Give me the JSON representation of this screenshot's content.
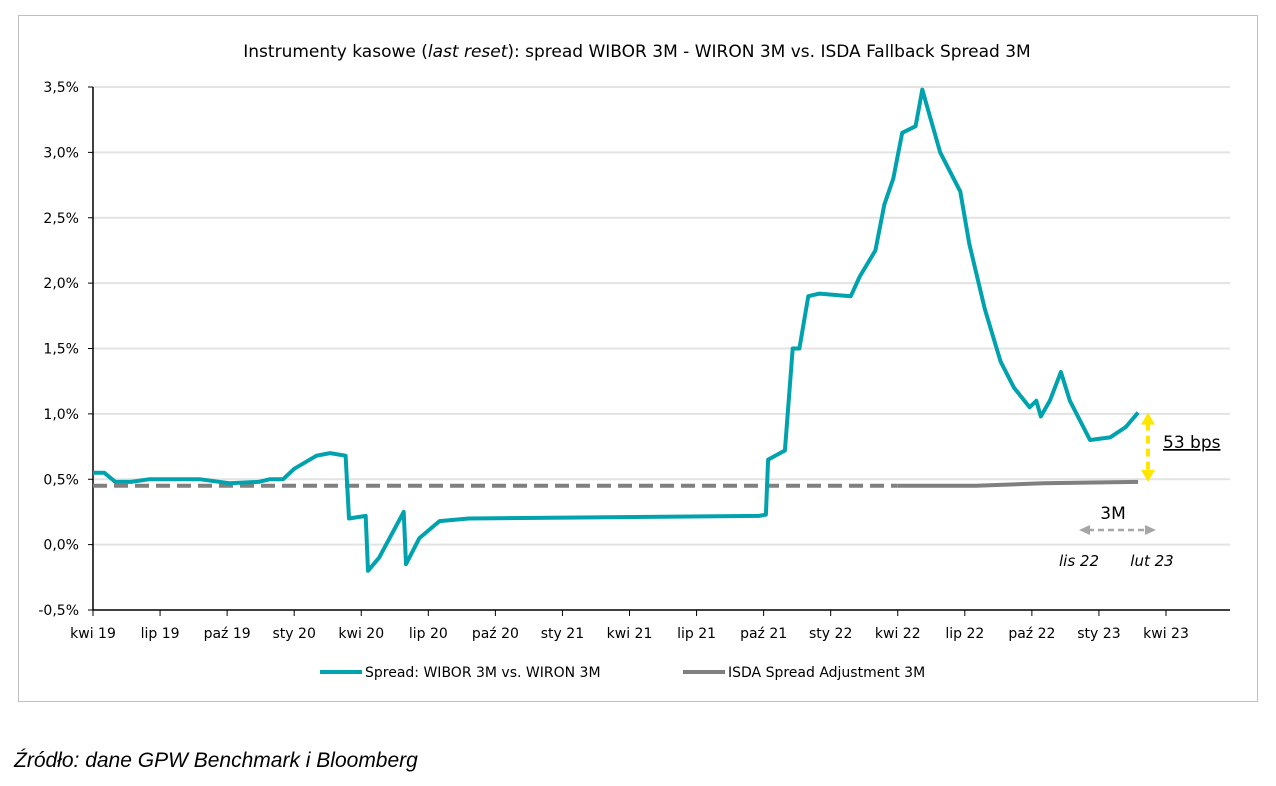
{
  "chart_data": {
    "type": "line",
    "title_parts": [
      "Instrumenty kasowe (",
      "last reset",
      "): spread WIBOR 3M - WIRON 3M vs. ISDA Fallback Spread 3M"
    ],
    "x_unit": "months since kwi 19",
    "x_ticks": [
      "kwi 19",
      "lip 19",
      "paź 19",
      "sty 20",
      "kwi 20",
      "lip 20",
      "paź 20",
      "sty 21",
      "kwi 21",
      "lip 21",
      "paź 21",
      "sty 22",
      "kwi 22",
      "lip 22",
      "paź 22",
      "sty 23",
      "kwi 23"
    ],
    "y_ticks": [
      "-0,5%",
      "0,0%",
      "0,5%",
      "1,0%",
      "1,5%",
      "2,0%",
      "2,5%",
      "3,0%",
      "3,5%"
    ],
    "ylim": [
      -0.5,
      3.5
    ],
    "xlim": [
      0,
      48
    ],
    "grid": true,
    "legend_position": "bottom",
    "series": [
      {
        "name": "Spread: WIBOR 3M vs. WIRON 3M",
        "color": "#00A3AD",
        "points": [
          [
            0,
            0.55
          ],
          [
            0.5,
            0.55
          ],
          [
            1,
            0.48
          ],
          [
            1.7,
            0.48
          ],
          [
            2.5,
            0.5
          ],
          [
            4.8,
            0.5
          ],
          [
            6.1,
            0.47
          ],
          [
            7.4,
            0.48
          ],
          [
            7.9,
            0.5
          ],
          [
            8.5,
            0.5
          ],
          [
            9,
            0.58
          ],
          [
            10,
            0.68
          ],
          [
            10.6,
            0.7
          ],
          [
            11.3,
            0.68
          ],
          [
            11.45,
            0.2
          ],
          [
            12.2,
            0.22
          ],
          [
            12.3,
            -0.2
          ],
          [
            12.8,
            -0.1
          ],
          [
            13.9,
            0.25
          ],
          [
            14,
            -0.15
          ],
          [
            14.6,
            0.05
          ],
          [
            15.5,
            0.18
          ],
          [
            16.8,
            0.2
          ],
          [
            29.8,
            0.22
          ],
          [
            30.1,
            0.23
          ],
          [
            30.2,
            0.65
          ],
          [
            30.95,
            0.72
          ],
          [
            31.3,
            1.5
          ],
          [
            31.6,
            1.5
          ],
          [
            32,
            1.9
          ],
          [
            32.5,
            1.92
          ],
          [
            33.9,
            1.9
          ],
          [
            34.3,
            2.05
          ],
          [
            35,
            2.25
          ],
          [
            35.4,
            2.6
          ],
          [
            35.8,
            2.8
          ],
          [
            36.2,
            3.15
          ],
          [
            36.8,
            3.2
          ],
          [
            37.1,
            3.48
          ],
          [
            37.4,
            3.3
          ],
          [
            37.9,
            3.0
          ],
          [
            38.8,
            2.7
          ],
          [
            39.2,
            2.3
          ],
          [
            39.9,
            1.8
          ],
          [
            40.6,
            1.4
          ],
          [
            41.2,
            1.2
          ],
          [
            41.9,
            1.05
          ],
          [
            42.2,
            1.1
          ],
          [
            42.4,
            0.98
          ],
          [
            42.8,
            1.1
          ],
          [
            43.3,
            1.32
          ],
          [
            43.7,
            1.1
          ],
          [
            44.6,
            0.8
          ],
          [
            45.5,
            0.82
          ],
          [
            46.2,
            0.9
          ],
          [
            46.75,
            1.01
          ]
        ]
      },
      {
        "name": "ISDA Spread Adjustment 3M",
        "color": "#808080",
        "points_dashed": [
          [
            0,
            0.45
          ],
          [
            36,
            0.45
          ]
        ],
        "points": [
          [
            36,
            0.45
          ],
          [
            39.5,
            0.45
          ],
          [
            42.5,
            0.47
          ],
          [
            46.75,
            0.48
          ]
        ]
      }
    ],
    "annotations": {
      "gap_label": "53 bps",
      "gap_color": "#FFE600",
      "period_label": "3M",
      "period_start": "lis 22",
      "period_end": "lut 23"
    }
  },
  "source": "Źródło: dane GPW Benchmark i Bloomberg"
}
